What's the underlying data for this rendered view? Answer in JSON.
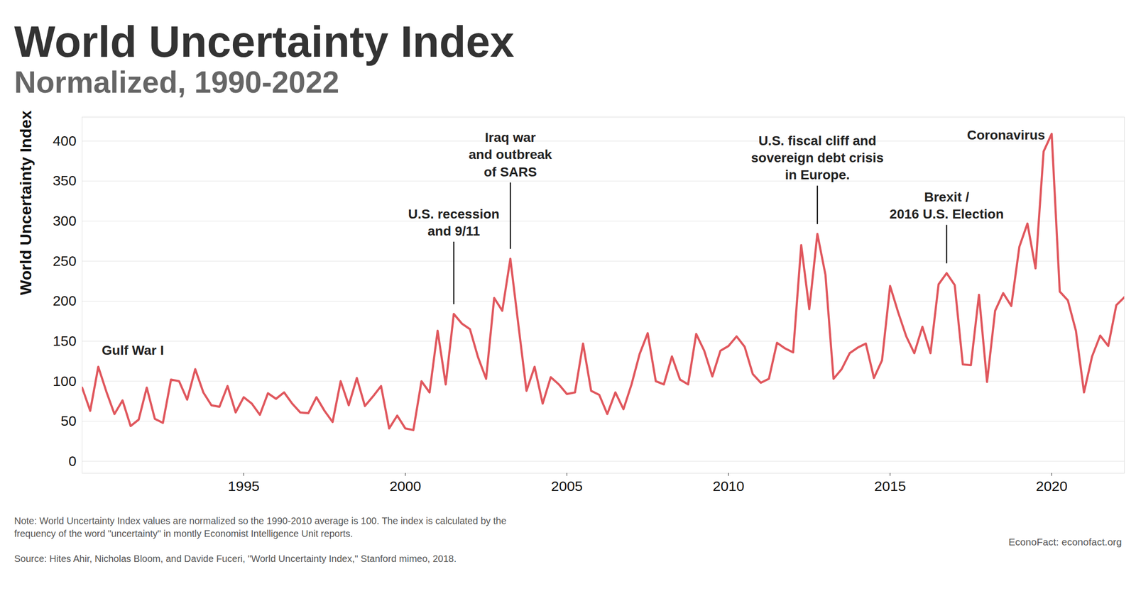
{
  "chart_data": {
    "type": "line",
    "title": "World Uncertainty Index",
    "subtitle": "Normalized, 1990-2022",
    "y_label": "World Uncertainty Index",
    "color": "#e0575d",
    "grid": true,
    "xlim": [
      1990,
      2022.25
    ],
    "xticks": [
      1995,
      2000,
      2005,
      2010,
      2015,
      2020
    ],
    "ylim": [
      -15,
      430
    ],
    "yticks": [
      0,
      50,
      100,
      150,
      200,
      250,
      300,
      350,
      400
    ],
    "x": [
      1990,
      1990.25,
      1990.5,
      1990.75,
      1991,
      1991.25,
      1991.5,
      1991.75,
      1992,
      1992.25,
      1992.5,
      1992.75,
      1993,
      1993.25,
      1993.5,
      1993.75,
      1994,
      1994.25,
      1994.5,
      1994.75,
      1995,
      1995.25,
      1995.5,
      1995.75,
      1996,
      1996.25,
      1996.5,
      1996.75,
      1997,
      1997.25,
      1997.5,
      1997.75,
      1998,
      1998.25,
      1998.5,
      1998.75,
      1999,
      1999.25,
      1999.5,
      1999.75,
      2000,
      2000.25,
      2000.5,
      2000.75,
      2001,
      2001.25,
      2001.5,
      2001.75,
      2002,
      2002.25,
      2002.5,
      2002.75,
      2003,
      2003.25,
      2003.5,
      2003.75,
      2004,
      2004.25,
      2004.5,
      2004.75,
      2005,
      2005.25,
      2005.5,
      2005.75,
      2006,
      2006.25,
      2006.5,
      2006.75,
      2007,
      2007.25,
      2007.5,
      2007.75,
      2008,
      2008.25,
      2008.5,
      2008.75,
      2009,
      2009.25,
      2009.5,
      2009.75,
      2010,
      2010.25,
      2010.5,
      2010.75,
      2011,
      2011.25,
      2011.5,
      2011.75,
      2012,
      2012.25,
      2012.5,
      2012.75,
      2013,
      2013.25,
      2013.5,
      2013.75,
      2014,
      2014.25,
      2014.5,
      2014.75,
      2015,
      2015.25,
      2015.5,
      2015.75,
      2016,
      2016.25,
      2016.5,
      2016.75,
      2017,
      2017.25,
      2017.5,
      2017.75,
      2018,
      2018.25,
      2018.5,
      2018.75,
      2019,
      2019.25,
      2019.5,
      2019.75,
      2020,
      2020.25,
      2020.5,
      2020.75,
      2021,
      2021.25,
      2021.5,
      2021.75,
      2022,
      2022.25
    ],
    "values": [
      92,
      63,
      118,
      87,
      59,
      76,
      44,
      52,
      92,
      53,
      48,
      102,
      100,
      77,
      115,
      86,
      70,
      68,
      94,
      61,
      80,
      72,
      58,
      85,
      78,
      86,
      72,
      61,
      60,
      80,
      63,
      49,
      100,
      70,
      104,
      69,
      81,
      94,
      41,
      57,
      41,
      39,
      100,
      86,
      163,
      96,
      184,
      172,
      165,
      130,
      103,
      204,
      188,
      253,
      170,
      88,
      118,
      72,
      105,
      96,
      84,
      86,
      147,
      88,
      83,
      59,
      86,
      65,
      96,
      134,
      160,
      100,
      96,
      131,
      102,
      96,
      159,
      138,
      106,
      138,
      144,
      156,
      143,
      109,
      98,
      103,
      148,
      141,
      136,
      270,
      190,
      284,
      233,
      103,
      115,
      135,
      142,
      147,
      104,
      126,
      219,
      186,
      156,
      135,
      168,
      135,
      221,
      235,
      220,
      121,
      120,
      208,
      99,
      188,
      210,
      194,
      268,
      297,
      241,
      387,
      409,
      212,
      201,
      163,
      86,
      131,
      157,
      144,
      195,
      205
    ],
    "annotations": [
      {
        "text": "Gulf War I",
        "x": 1990.5,
        "y": 118
      },
      {
        "text": "U.S. recession\nand 9/11",
        "x": 2001.5,
        "y": 184
      },
      {
        "text": "Iraq war\nand outbreak\nof SARS",
        "x": 2003.25,
        "y": 253
      },
      {
        "text": "U.S. fiscal cliff and\nsovereign debt crisis\nin Europe.",
        "x": 2012.75,
        "y": 284
      },
      {
        "text": "Brexit /\n2016 U.S. Election",
        "x": 2016.75,
        "y": 235
      },
      {
        "text": "Coronavirus",
        "x": 2020,
        "y": 409
      }
    ],
    "note": "Note: World Uncertainty Index values are normalized so the 1990-2010 average is 100. The index is calculated by the\nfrequency of the word \"uncertainty\" in montly Economist Intelligence Unit reports.",
    "source": "Source: Hites Ahir, Nicholas Bloom, and Davide Fuceri, \"World Uncertainty Index,\" Stanford mimeo, 2018.",
    "credit": "EconoFact: econofact.org"
  }
}
